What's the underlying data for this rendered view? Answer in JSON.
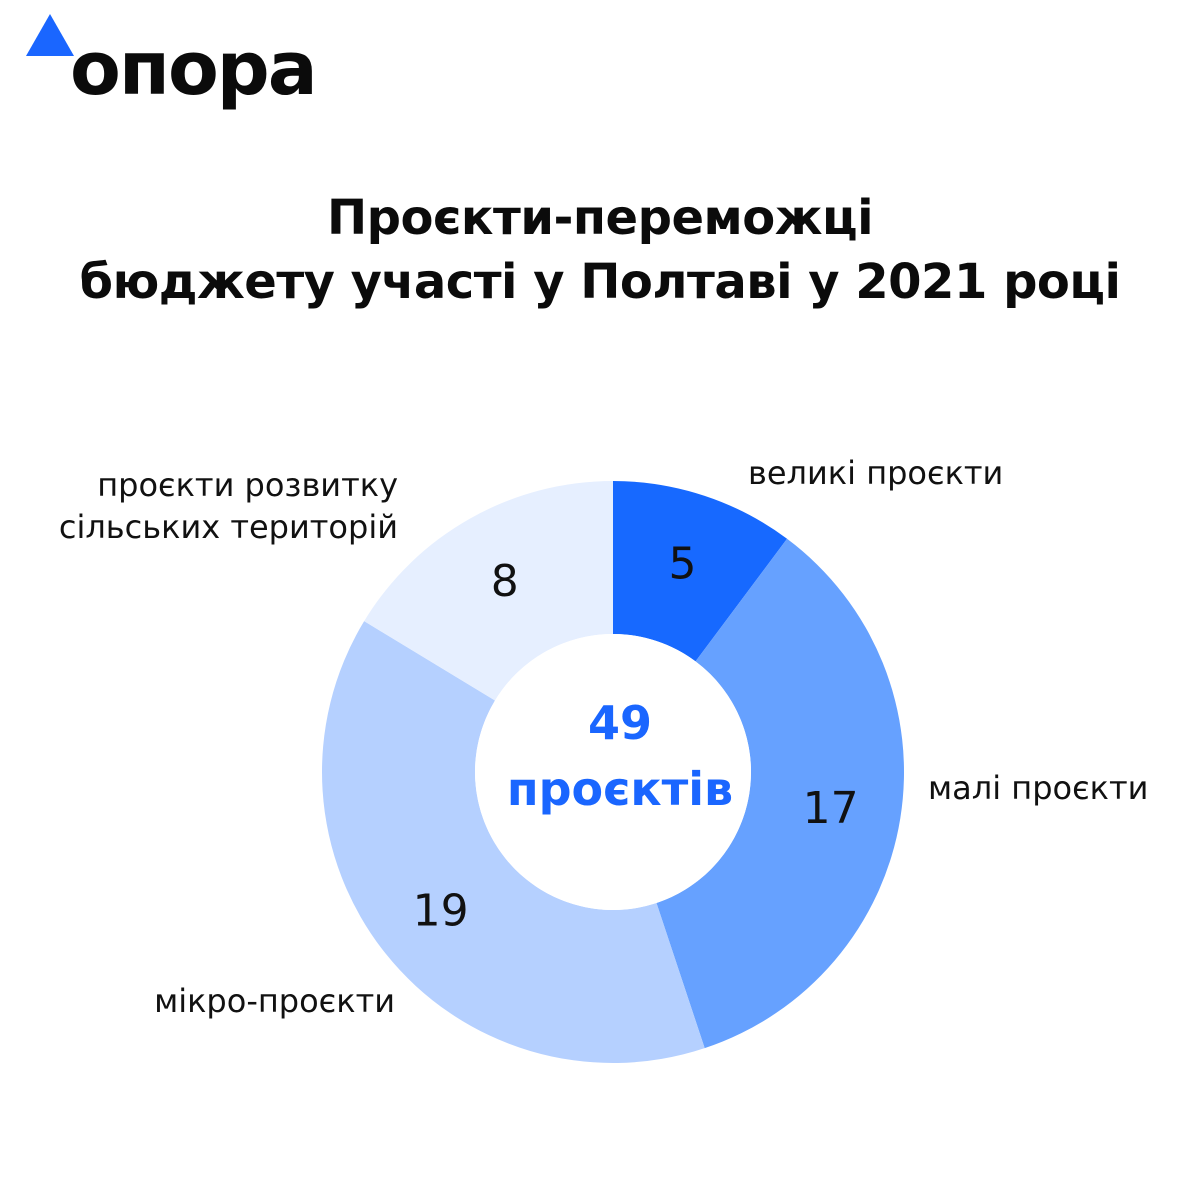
{
  "logo": {
    "text": "опора",
    "triangle_color": "#1a66ff"
  },
  "title": {
    "line1": "Проєкти-переможці",
    "line2": "бюджету участі у Полтаві у 2021 році"
  },
  "center": {
    "total": "49",
    "unit": "проєктів",
    "color": "#1a66ff"
  },
  "chart_data": {
    "type": "pie",
    "title": "Проєкти-переможці бюджету участі у Полтаві у 2021 році",
    "total": 49,
    "slices": [
      {
        "label": "великі проєкти",
        "value": 5,
        "color": "#1769ff"
      },
      {
        "label": "малі проєкти",
        "value": 17,
        "color": "#66a1ff"
      },
      {
        "label": "мікро-проєкти",
        "value": 19,
        "color": "#b5d0ff"
      },
      {
        "label": "проєкти розвитку сільських територій",
        "value": 8,
        "color": "#e6efff"
      }
    ]
  }
}
